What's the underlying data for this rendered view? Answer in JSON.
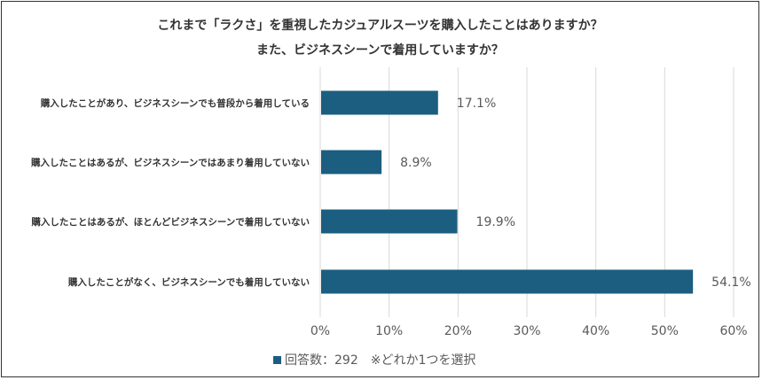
{
  "colors": {
    "bar": "#1b5e80",
    "grid": "#d9d9d9",
    "text": "#404040",
    "tick": "#595959"
  },
  "chart_data": {
    "type": "bar",
    "orientation": "horizontal",
    "title": "これまで「ラクさ」を重視したカジュアルスーツを購入したことはありますか？",
    "subtitle": "また、ビジネスシーンで着用していますか？",
    "categories": [
      "購入したことがあり、ビジネスシーンでも普段から着用している",
      "購入したことはあるが、ビジネスシーンではあまり着用していない",
      "購入したことはあるが、ほとんどビジネスシーンで着用していない",
      "購入したことがなく、ビジネスシーンでも着用していない"
    ],
    "values": [
      17.1,
      8.9,
      19.9,
      54.1
    ],
    "value_labels": [
      "17.1%",
      "8.9%",
      "19.9%",
      "54.1%"
    ],
    "xlim": [
      0,
      60
    ],
    "xticks": [
      0,
      10,
      20,
      30,
      40,
      50,
      60
    ],
    "xtick_labels": [
      "0%",
      "10%",
      "20%",
      "30%",
      "40%",
      "50%",
      "60%"
    ],
    "grid": true,
    "legend": {
      "placement": "bottom",
      "text": "回答数：292　※どれか1つを選択"
    }
  }
}
